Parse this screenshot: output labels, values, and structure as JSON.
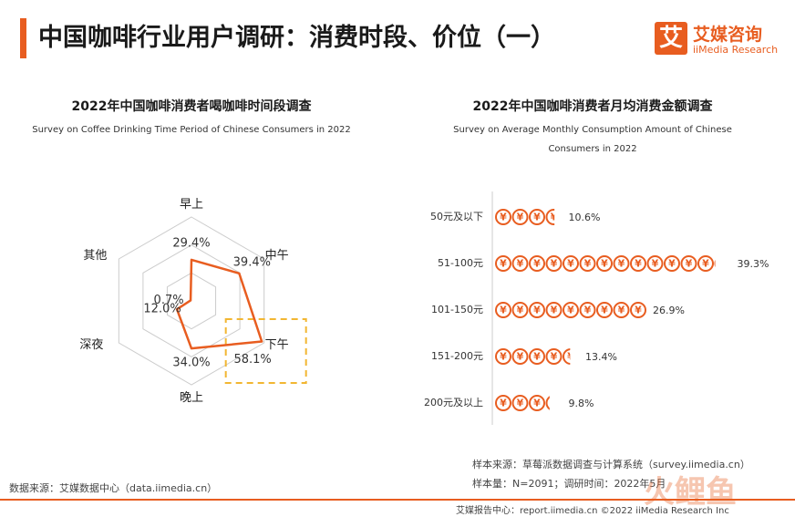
{
  "header": {
    "title": "中国咖啡行业用户调研：消费时段、价位（一）",
    "logo_box": "艾",
    "logo_cn": "艾媒咨询",
    "logo_en": "iiMedia Research"
  },
  "colors": {
    "accent": "#e85d20",
    "highlight": "#f2b632",
    "grid": "#cccccc"
  },
  "chart_data": [
    {
      "type": "radar",
      "title": "2022年中国咖啡消费者喝咖啡时间段调查",
      "subtitle": "Survey on Coffee Drinking Time Period of Chinese Consumers in 2022",
      "categories": [
        "早上",
        "中午",
        "下午",
        "晚上",
        "深夜",
        "其他"
      ],
      "values": [
        29.4,
        39.4,
        58.1,
        34.0,
        12.0,
        0.7
      ],
      "value_labels": [
        "29.4%",
        "39.4%",
        "58.1%",
        "34.0%",
        "12.0%",
        "0.7%"
      ],
      "highlight": "下午"
    },
    {
      "type": "pictograph-bar",
      "title": "2022年中国咖啡消费者月均消费金额调查",
      "subtitle": "Survey on Average Monthly Consumption Amount of Chinese Consumers in 2022",
      "icon": "yen-coin-icon",
      "icon_glyph": "¥",
      "categories": [
        "50元及以下",
        "51-100元",
        "101-150元",
        "151-200元",
        "200元及以上"
      ],
      "values": [
        10.6,
        39.3,
        26.9,
        13.4,
        9.8
      ],
      "value_labels": [
        "10.6%",
        "39.3%",
        "26.9%",
        "13.4%",
        "9.8%"
      ]
    }
  ],
  "sources": {
    "left": "数据来源：艾媒数据中心（data.iimedia.cn）",
    "right_source": "样本来源：草莓派数据调查与计算系统（survey.iimedia.cn）",
    "right_sample": "样本量：N=2091；调研时间：2022年5月",
    "footer": "艾媒报告中心：report.iimedia.cn    ©2022  iiMedia Research  Inc",
    "watermark": "火鲤鱼"
  }
}
